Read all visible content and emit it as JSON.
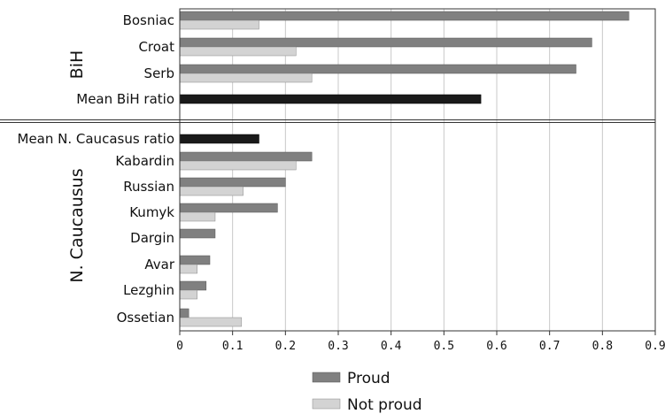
{
  "chart_data": {
    "type": "bar",
    "orientation": "horizontal",
    "title": "",
    "xlabel": "",
    "ylabel": "",
    "xlim": [
      0,
      0.9
    ],
    "xticks": [
      "0",
      "0.1",
      "0.2",
      "0.3",
      "0.4",
      "0.5",
      "0.6",
      "0.7",
      "0.8",
      "0.9"
    ],
    "grid": true,
    "legend_position": "bottom",
    "colors": {
      "proud": "#808080",
      "not_proud": "#d3d3d3",
      "mean": "#1a1a1a",
      "grid": "#c8c8c8",
      "frame": "#333333"
    },
    "groups": [
      {
        "label": "BiH",
        "categories": [
          {
            "name": "Bosniac",
            "proud": 0.85,
            "not_proud": 0.15
          },
          {
            "name": "Croat",
            "proud": 0.78,
            "not_proud": 0.22
          },
          {
            "name": "Serb",
            "proud": 0.75,
            "not_proud": 0.25
          },
          {
            "name": "Mean BiH ratio",
            "mean": 0.57
          }
        ]
      },
      {
        "label": "N. Caucausus",
        "categories": [
          {
            "name": "Mean N. Caucasus ratio",
            "mean": 0.15
          },
          {
            "name": "Kabardin",
            "proud": 0.25,
            "not_proud": 0.22
          },
          {
            "name": "Russian",
            "proud": 0.2,
            "not_proud": 0.12
          },
          {
            "name": "Kumyk",
            "proud": 0.185,
            "not_proud": 0.067
          },
          {
            "name": "Dargin",
            "proud": 0.067,
            "not_proud": 0
          },
          {
            "name": "Avar",
            "proud": 0.057,
            "not_proud": 0.033
          },
          {
            "name": "Lezghin",
            "proud": 0.05,
            "not_proud": 0.033
          },
          {
            "name": "Ossetian",
            "proud": 0.017,
            "not_proud": 0.117
          }
        ]
      }
    ],
    "series": [
      {
        "name": "Proud",
        "key": "proud"
      },
      {
        "name": "Not proud",
        "key": "not_proud"
      }
    ]
  }
}
